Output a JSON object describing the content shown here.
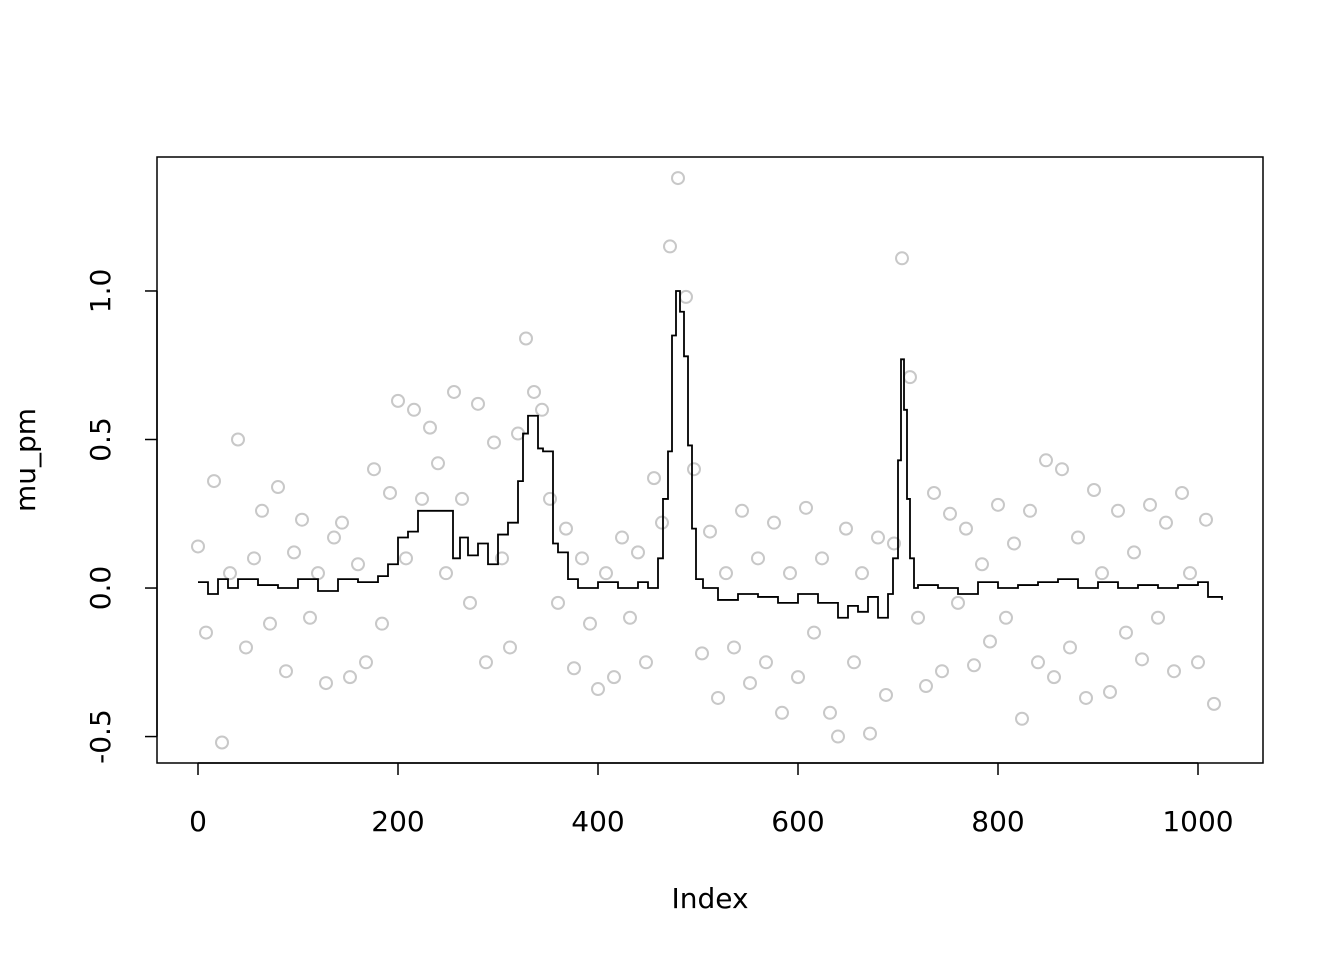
{
  "chart_data": {
    "type": "scatter",
    "xlabel": "Index",
    "ylabel": "mu_pm",
    "xlim": [
      -41,
      1065
    ],
    "ylim": [
      -0.589,
      1.451
    ],
    "xticks": [
      0,
      200,
      400,
      600,
      800,
      1000
    ],
    "yticks": [
      -0.5,
      {
        "value": 0,
        "label": "0.0"
      },
      0.5,
      {
        "value": 1,
        "label": "1.0"
      }
    ],
    "series": [
      {
        "type": "scatter",
        "color": "#c8c8c8",
        "x": [
          0,
          8,
          16,
          24,
          32,
          40,
          48,
          56,
          64,
          72,
          80,
          88,
          96,
          104,
          112,
          120,
          128,
          136,
          144,
          152,
          160,
          168,
          176,
          184,
          192,
          200,
          208,
          216,
          224,
          232,
          240,
          248,
          256,
          264,
          272,
          280,
          288,
          296,
          304,
          312,
          320,
          328,
          336,
          344,
          352,
          360,
          368,
          376,
          384,
          392,
          400,
          408,
          416,
          424,
          432,
          440,
          448,
          456,
          464,
          472,
          480,
          488,
          496,
          504,
          512,
          520,
          528,
          536,
          544,
          552,
          560,
          568,
          576,
          584,
          592,
          600,
          608,
          616,
          624,
          632,
          640,
          648,
          656,
          664,
          672,
          680,
          688,
          696,
          704,
          712,
          720,
          728,
          736,
          744,
          752,
          760,
          768,
          776,
          784,
          792,
          800,
          808,
          816,
          824,
          832,
          840,
          848,
          856,
          864,
          872,
          880,
          888,
          896,
          904,
          912,
          920,
          928,
          936,
          944,
          952,
          960,
          968,
          976,
          984,
          992,
          1000,
          1008,
          1016
        ],
        "values": [
          0.14,
          -0.15,
          0.36,
          -0.52,
          0.05,
          0.5,
          -0.2,
          0.1,
          0.26,
          -0.12,
          0.34,
          -0.28,
          0.12,
          0.23,
          -0.1,
          0.05,
          -0.32,
          0.17,
          0.22,
          -0.3,
          0.08,
          -0.25,
          0.4,
          -0.12,
          0.32,
          0.63,
          0.1,
          0.6,
          0.3,
          0.54,
          0.42,
          0.05,
          0.66,
          0.3,
          -0.05,
          0.62,
          -0.25,
          0.49,
          0.1,
          -0.2,
          0.52,
          0.84,
          0.66,
          0.6,
          0.3,
          -0.05,
          0.2,
          -0.27,
          0.1,
          -0.12,
          -0.34,
          0.05,
          -0.3,
          0.17,
          -0.1,
          0.12,
          -0.25,
          0.37,
          0.22,
          1.15,
          1.38,
          0.98,
          0.4,
          -0.22,
          0.19,
          -0.37,
          0.05,
          -0.2,
          0.26,
          -0.32,
          0.1,
          -0.25,
          0.22,
          -0.42,
          0.05,
          -0.3,
          0.27,
          -0.15,
          0.1,
          -0.42,
          -0.5,
          0.2,
          -0.25,
          0.05,
          -0.49,
          0.17,
          -0.36,
          0.15,
          1.11,
          0.71,
          -0.1,
          -0.33,
          0.32,
          -0.28,
          0.25,
          -0.05,
          0.2,
          -0.26,
          0.08,
          -0.18,
          0.28,
          -0.1,
          0.15,
          -0.44,
          0.26,
          -0.25,
          0.43,
          -0.3,
          0.4,
          -0.2,
          0.17,
          -0.37,
          0.33,
          0.05,
          -0.35,
          0.26,
          -0.15,
          0.12,
          -0.24,
          0.28,
          -0.1,
          0.22,
          -0.28,
          0.32,
          0.05,
          -0.25,
          0.23,
          -0.39
        ]
      },
      {
        "type": "step",
        "color": "#000000",
        "x": [
          0,
          10,
          20,
          30,
          40,
          60,
          80,
          100,
          120,
          140,
          160,
          180,
          190,
          200,
          210,
          220,
          230,
          255,
          262,
          270,
          280,
          290,
          300,
          310,
          320,
          325,
          330,
          340,
          345,
          355,
          360,
          370,
          380,
          400,
          420,
          440,
          450,
          460,
          465,
          470,
          474,
          478,
          482,
          486,
          490,
          494,
          498,
          505,
          520,
          540,
          560,
          580,
          600,
          620,
          640,
          650,
          660,
          670,
          680,
          690,
          695,
          700,
          703,
          706,
          709,
          712,
          716,
          720,
          740,
          760,
          780,
          800,
          820,
          840,
          860,
          880,
          900,
          920,
          940,
          960,
          980,
          1000,
          1010,
          1024
        ],
        "values": [
          0.02,
          -0.02,
          0.03,
          0.0,
          0.03,
          0.01,
          0.0,
          0.03,
          -0.01,
          0.03,
          0.02,
          0.04,
          0.08,
          0.17,
          0.19,
          0.26,
          0.26,
          0.1,
          0.17,
          0.11,
          0.15,
          0.08,
          0.18,
          0.22,
          0.36,
          0.52,
          0.58,
          0.47,
          0.46,
          0.15,
          0.12,
          0.03,
          0.0,
          0.02,
          0.0,
          0.02,
          0.0,
          0.1,
          0.3,
          0.46,
          0.85,
          1.0,
          0.93,
          0.78,
          0.48,
          0.2,
          0.03,
          0.0,
          -0.04,
          -0.02,
          -0.03,
          -0.05,
          -0.02,
          -0.05,
          -0.1,
          -0.06,
          -0.08,
          -0.03,
          -0.1,
          -0.02,
          0.1,
          0.43,
          0.77,
          0.6,
          0.3,
          0.1,
          0.0,
          0.01,
          0.0,
          -0.02,
          0.02,
          0.0,
          0.01,
          0.02,
          0.03,
          0.0,
          0.02,
          0.0,
          0.01,
          0.0,
          0.01,
          0.02,
          -0.03,
          -0.04
        ]
      }
    ]
  }
}
